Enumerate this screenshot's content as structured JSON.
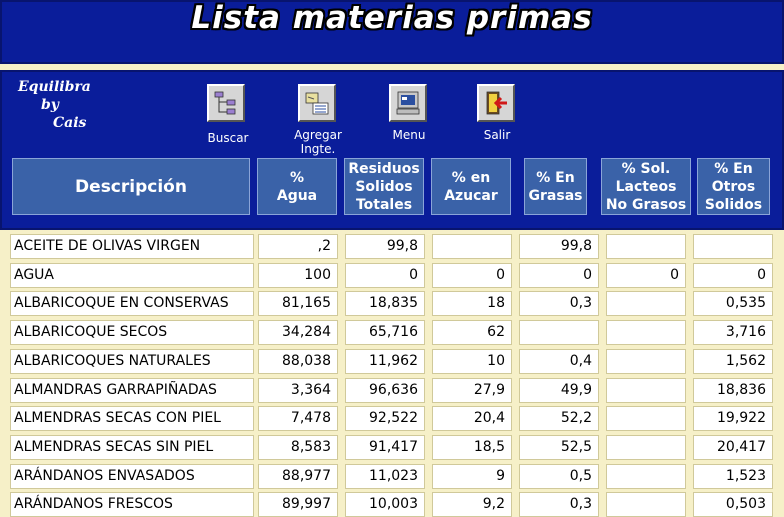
{
  "title": "Lista materias primas",
  "brand": {
    "line1": "Equilibra",
    "line2": "by",
    "line3": "Cais"
  },
  "toolbar": {
    "buscar": "Buscar",
    "agregar_line1": "Agregar",
    "agregar_line2": "Ingte.",
    "menu": "Menu",
    "salir": "Salir"
  },
  "columns": {
    "descripcion": "Descripción",
    "agua": [
      "%",
      "Agua"
    ],
    "residuos": [
      "Residuos",
      "Solidos",
      "Totales"
    ],
    "azucar": [
      "% en",
      "Azucar"
    ],
    "grasas": [
      "% En",
      "Grasas"
    ],
    "lacteos": [
      "% Sol.",
      "Lacteos",
      "No Grasos"
    ],
    "otros": [
      "% En",
      "Otros",
      "Solidos"
    ]
  },
  "rows": [
    {
      "desc": "ACEITE DE OLIVAS VIRGEN",
      "agua": ",2",
      "residuos": "99,8",
      "azucar": "",
      "grasas": "99,8",
      "lacteos": "",
      "otros": ""
    },
    {
      "desc": "AGUA",
      "agua": "100",
      "residuos": "0",
      "azucar": "0",
      "grasas": "0",
      "lacteos": "0",
      "otros": "0"
    },
    {
      "desc": "ALBARICOQUE EN CONSERVAS",
      "agua": "81,165",
      "residuos": "18,835",
      "azucar": "18",
      "grasas": "0,3",
      "lacteos": "",
      "otros": "0,535"
    },
    {
      "desc": "ALBARICOQUE SECOS",
      "agua": "34,284",
      "residuos": "65,716",
      "azucar": "62",
      "grasas": "",
      "lacteos": "",
      "otros": "3,716"
    },
    {
      "desc": "ALBARICOQUES NATURALES",
      "agua": "88,038",
      "residuos": "11,962",
      "azucar": "10",
      "grasas": "0,4",
      "lacteos": "",
      "otros": "1,562"
    },
    {
      "desc": "ALMANDRAS GARRAPIÑADAS",
      "agua": "3,364",
      "residuos": "96,636",
      "azucar": "27,9",
      "grasas": "49,9",
      "lacteos": "",
      "otros": "18,836"
    },
    {
      "desc": "ALMENDRAS SECAS CON PIEL",
      "agua": "7,478",
      "residuos": "92,522",
      "azucar": "20,4",
      "grasas": "52,2",
      "lacteos": "",
      "otros": "19,922"
    },
    {
      "desc": "ALMENDRAS SECAS SIN PIEL",
      "agua": "8,583",
      "residuos": "91,417",
      "azucar": "18,5",
      "grasas": "52,5",
      "lacteos": "",
      "otros": "20,417"
    },
    {
      "desc": "ARÁNDANOS ENVASADOS",
      "agua": "88,977",
      "residuos": "11,023",
      "azucar": "9",
      "grasas": "0,5",
      "lacteos": "",
      "otros": "1,523"
    },
    {
      "desc": "ARÁNDANOS FRESCOS",
      "agua": "89,997",
      "residuos": "10,003",
      "azucar": "9,2",
      "grasas": "0,3",
      "lacteos": "",
      "otros": "0,503"
    }
  ]
}
